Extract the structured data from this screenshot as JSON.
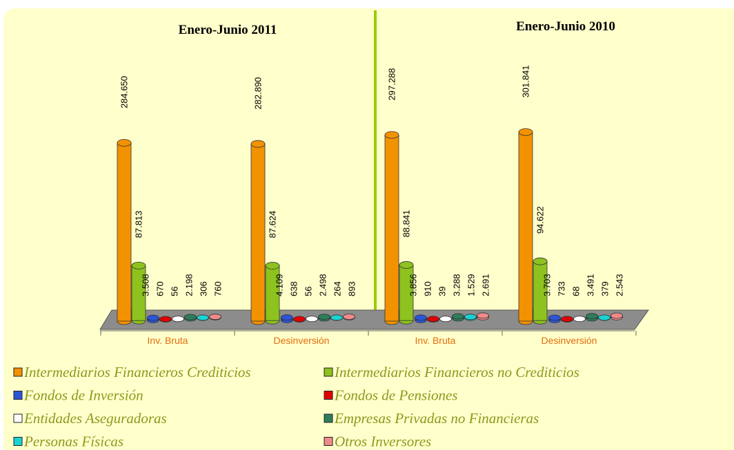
{
  "chart_data": {
    "type": "bar3d",
    "period_labels": [
      "Enero-Junio 2011",
      "Enero-Junio 2010"
    ],
    "categories": [
      "Inv. Bruta",
      "Desinversión",
      "Inv. Bruta",
      "Desinversión"
    ],
    "ylim": [
      0,
      330000
    ],
    "series": [
      {
        "name": "Intermediarios Financieros Crediticios",
        "color": "#f39200",
        "values": [
          284650,
          282890,
          297288,
          301841
        ],
        "value_labels": [
          "284.650",
          "282.890",
          "297.288",
          "301.841"
        ]
      },
      {
        "name": "Intermediarios Financieros no Crediticios",
        "color": "#8dc21f",
        "values": [
          87813,
          87624,
          88841,
          94622
        ],
        "value_labels": [
          "87.813",
          "87.624",
          "88.841",
          "94.622"
        ]
      },
      {
        "name": "Fondos de Inversión",
        "color": "#2b55d9",
        "values": [
          3508,
          4109,
          3856,
          3703
        ],
        "value_labels": [
          "3.508",
          "4.109",
          "3.856",
          "3.703"
        ]
      },
      {
        "name": "Fondos de Pensiones",
        "color": "#e00000",
        "values": [
          670,
          638,
          910,
          733
        ],
        "value_labels": [
          "670",
          "638",
          "910",
          "733"
        ]
      },
      {
        "name": "Entidades Aseguradoras",
        "color": "#ffffff",
        "values": [
          56,
          56,
          39,
          68
        ],
        "value_labels": [
          "56",
          "56",
          "39",
          "68"
        ]
      },
      {
        "name": "Empresas Privadas no Financieras",
        "color": "#2e7d5b",
        "values": [
          2198,
          2498,
          3288,
          3491
        ],
        "value_labels": [
          "2.198",
          "2.498",
          "3.288",
          "3.491"
        ]
      },
      {
        "name": "Personas Físicas",
        "color": "#19d3d3",
        "values": [
          306,
          264,
          1529,
          379
        ],
        "value_labels": [
          "306",
          "264",
          "1.529",
          "379"
        ]
      },
      {
        "name": "Otros Inversores",
        "color": "#f08a8a",
        "values": [
          760,
          893,
          2691,
          2543
        ],
        "value_labels": [
          "760",
          "893",
          "2.691",
          "2.543"
        ]
      }
    ]
  }
}
